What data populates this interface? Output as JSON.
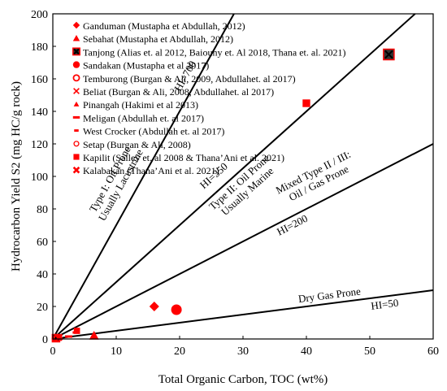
{
  "chart_data": {
    "type": "scatter",
    "title": "",
    "xlabel": "Total Organic Carbon, TOC (wt%)",
    "ylabel": "Hydrocarbon Yield S2  (mg HC/g  rock)",
    "xlim": [
      0,
      60
    ],
    "ylim": [
      0,
      200
    ],
    "xticks": [
      0,
      10,
      20,
      30,
      40,
      50,
      60
    ],
    "yticks": [
      0,
      20,
      40,
      60,
      80,
      100,
      120,
      140,
      160,
      180,
      200
    ],
    "grid": false,
    "legend_position": "top-left",
    "hi_lines": [
      {
        "hi": 700,
        "label": "HI=700"
      },
      {
        "hi": 350,
        "label": "HI=350"
      },
      {
        "hi": 200,
        "label": "HI=200"
      },
      {
        "hi": 50,
        "label": "HI=50"
      }
    ],
    "zone_labels": [
      {
        "lines": [
          "Type I: Oil Prone",
          "Usually Lacustrine"
        ]
      },
      {
        "lines": [
          "Type II: Oil Prone",
          "Usually Marine"
        ]
      },
      {
        "lines": [
          "Mixed Type II / III:",
          "Oil / Gas Prone"
        ]
      },
      {
        "lines": [
          "Dry Gas Prone"
        ]
      }
    ],
    "series": [
      {
        "name": "Ganduman (Mustapha et Abdullah, 2012)",
        "marker": "diamond",
        "points": [
          [
            16,
            20
          ]
        ]
      },
      {
        "name": "Sebahat (Mustapha et Abdullah, 2012)",
        "marker": "triangle",
        "points": [
          [
            6.5,
            2
          ],
          [
            0.6,
            0.5
          ]
        ]
      },
      {
        "name": "Tanjong (Alias et. al 2012, Baiouny et. Al 2018, Thana et. al. 2021)",
        "marker": "square-x",
        "points": [
          [
            53,
            175
          ],
          [
            0.5,
            0.5
          ]
        ]
      },
      {
        "name": "Sandakan (Mustapha et al 2017)",
        "marker": "circle",
        "points": [
          [
            19.5,
            18
          ]
        ]
      },
      {
        "name": "Temburong (Burgan & Ali, 2009, Abdullahet. al 2017)",
        "marker": "circle-open",
        "points": [
          [
            0.7,
            0.4
          ]
        ]
      },
      {
        "name": "Beliat (Burgan & Ali, 2008, Abdullahet. al 2017)",
        "marker": "x",
        "points": [
          [
            0.9,
            0.8
          ]
        ]
      },
      {
        "name": "Pinangah (Hakimi et al 2013)",
        "marker": "triangle-small",
        "points": [
          [
            1.2,
            1.2
          ]
        ]
      },
      {
        "name": "Meligan (Abdullah et. al 2017)",
        "marker": "dash",
        "points": [
          [
            2.5,
            1.5
          ]
        ]
      },
      {
        "name": "West Crocker (Abdullah et. al 2017)",
        "marker": "dash-small",
        "points": [
          [
            3.5,
            4
          ]
        ]
      },
      {
        "name": "Setap (Burgan & Ali, 2008)",
        "marker": "circle-open-small",
        "points": [
          [
            0.3,
            0.3
          ]
        ]
      },
      {
        "name": "Kapilit (Salley et. al 2008 & Thana’Ani et al. 2021)",
        "marker": "square",
        "points": [
          [
            40,
            145
          ],
          [
            3.8,
            5
          ]
        ]
      },
      {
        "name": "Kalabakan (Thana’Ani et al. 2021)",
        "marker": "x-bold",
        "points": [
          [
            1.0,
            1.0
          ]
        ]
      }
    ],
    "colors": {
      "marker": "#ff0000",
      "tanjong_fill": "#333333",
      "axis": "#000000"
    }
  }
}
